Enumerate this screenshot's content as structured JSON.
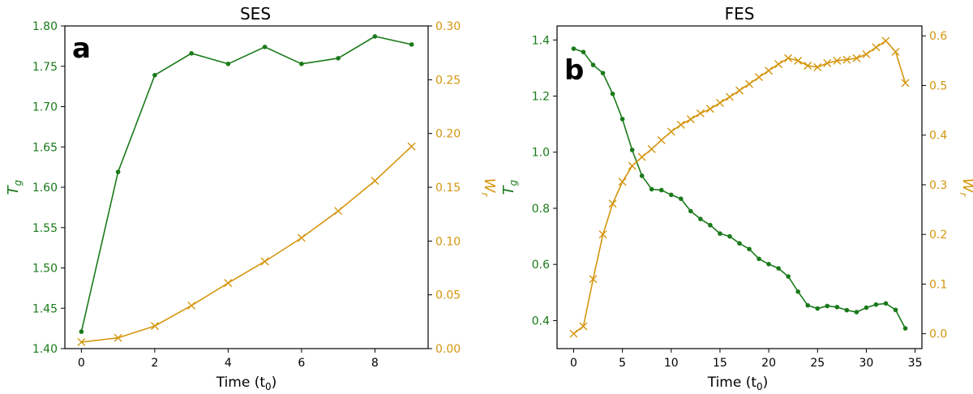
{
  "colors": {
    "left_series": "#1a7a1a",
    "right_series": "#d4960e",
    "axis": "#000000"
  },
  "chart_data": [
    {
      "type": "line",
      "title": "SES",
      "panel_label": "a",
      "xlabel": "Time (t",
      "xlabel_sub": "0",
      "xlabel_close": ")",
      "ylabel_left": "T",
      "ylabel_left_sub": "g",
      "ylabel_right": "W",
      "ylabel_right_sub": "r",
      "xlim": [
        -0.45,
        9.45
      ],
      "ylim_left": [
        1.4,
        1.8
      ],
      "ylim_right": [
        0.0,
        0.3
      ],
      "xticks": [
        0,
        2,
        4,
        6,
        8
      ],
      "xtick_labels": [
        "0",
        "2",
        "4",
        "6",
        "8"
      ],
      "yticks_left": [
        1.4,
        1.45,
        1.5,
        1.55,
        1.6,
        1.65,
        1.7,
        1.75,
        1.8
      ],
      "ytick_labels_left": [
        "1.40",
        "1.45",
        "1.50",
        "1.55",
        "1.60",
        "1.65",
        "1.70",
        "1.75",
        "1.80"
      ],
      "yticks_right": [
        0.0,
        0.05,
        0.1,
        0.15,
        0.2,
        0.25,
        0.3
      ],
      "ytick_labels_right": [
        "0.00",
        "0.05",
        "0.10",
        "0.15",
        "0.20",
        "0.25",
        "0.30"
      ],
      "grid": false,
      "series": [
        {
          "axis": "left",
          "marker": "dot",
          "x": [
            0,
            1,
            2,
            3,
            4,
            5,
            6,
            7,
            8,
            9
          ],
          "y": [
            1.421,
            1.619,
            1.739,
            1.766,
            1.753,
            1.774,
            1.753,
            1.76,
            1.787,
            1.777
          ]
        },
        {
          "axis": "right",
          "marker": "x",
          "x": [
            0,
            1,
            2,
            3,
            4,
            5,
            6,
            7,
            8,
            9
          ],
          "y": [
            0.006,
            0.01,
            0.021,
            0.04,
            0.061,
            0.081,
            0.103,
            0.128,
            0.156,
            0.188
          ]
        }
      ]
    },
    {
      "type": "line",
      "title": "FES",
      "panel_label": "b",
      "xlabel": "Time (t",
      "xlabel_sub": "0",
      "xlabel_close": ")",
      "ylabel_left": "T",
      "ylabel_left_sub": "g",
      "ylabel_right": "W",
      "ylabel_right_sub": "r",
      "xlim": [
        -1.7,
        35.7
      ],
      "ylim_left": [
        0.3,
        1.45
      ],
      "ylim_right": [
        -0.03,
        0.62
      ],
      "xticks": [
        0,
        5,
        10,
        15,
        20,
        25,
        30,
        35
      ],
      "xtick_labels": [
        "0",
        "5",
        "10",
        "15",
        "20",
        "25",
        "30",
        "35"
      ],
      "yticks_left": [
        0.4,
        0.6,
        0.8,
        1.0,
        1.2,
        1.4
      ],
      "ytick_labels_left": [
        "0.4",
        "0.6",
        "0.8",
        "1.0",
        "1.2",
        "1.4"
      ],
      "yticks_right": [
        0.0,
        0.1,
        0.2,
        0.3,
        0.4,
        0.5,
        0.6
      ],
      "ytick_labels_right": [
        "0.0",
        "0.1",
        "0.2",
        "0.3",
        "0.4",
        "0.5",
        "0.6"
      ],
      "grid": false,
      "series": [
        {
          "axis": "left",
          "marker": "dot",
          "x": [
            0,
            1,
            2,
            3,
            4,
            5,
            6,
            7,
            8,
            9,
            10,
            11,
            12,
            13,
            14,
            15,
            16,
            17,
            18,
            19,
            20,
            21,
            22,
            23,
            24,
            25,
            26,
            27,
            28,
            29,
            30,
            31,
            32,
            33,
            34
          ],
          "y": [
            1.369,
            1.357,
            1.311,
            1.282,
            1.208,
            1.118,
            1.008,
            0.916,
            0.868,
            0.865,
            0.848,
            0.834,
            0.79,
            0.762,
            0.74,
            0.71,
            0.7,
            0.675,
            0.655,
            0.62,
            0.601,
            0.586,
            0.557,
            0.503,
            0.454,
            0.443,
            0.452,
            0.448,
            0.437,
            0.43,
            0.446,
            0.457,
            0.461,
            0.438,
            0.372
          ]
        },
        {
          "axis": "right",
          "marker": "x",
          "x": [
            0,
            1,
            2,
            3,
            4,
            5,
            6,
            7,
            8,
            9,
            10,
            11,
            12,
            13,
            14,
            15,
            16,
            17,
            18,
            19,
            20,
            21,
            22,
            23,
            24,
            25,
            26,
            27,
            28,
            29,
            30,
            31,
            32,
            33,
            34
          ],
          "y": [
            0.0,
            0.015,
            0.11,
            0.2,
            0.262,
            0.306,
            0.338,
            0.356,
            0.372,
            0.39,
            0.407,
            0.421,
            0.432,
            0.444,
            0.453,
            0.465,
            0.477,
            0.49,
            0.503,
            0.517,
            0.53,
            0.543,
            0.555,
            0.55,
            0.54,
            0.537,
            0.545,
            0.55,
            0.552,
            0.555,
            0.563,
            0.577,
            0.59,
            0.568,
            0.505
          ]
        }
      ]
    }
  ]
}
